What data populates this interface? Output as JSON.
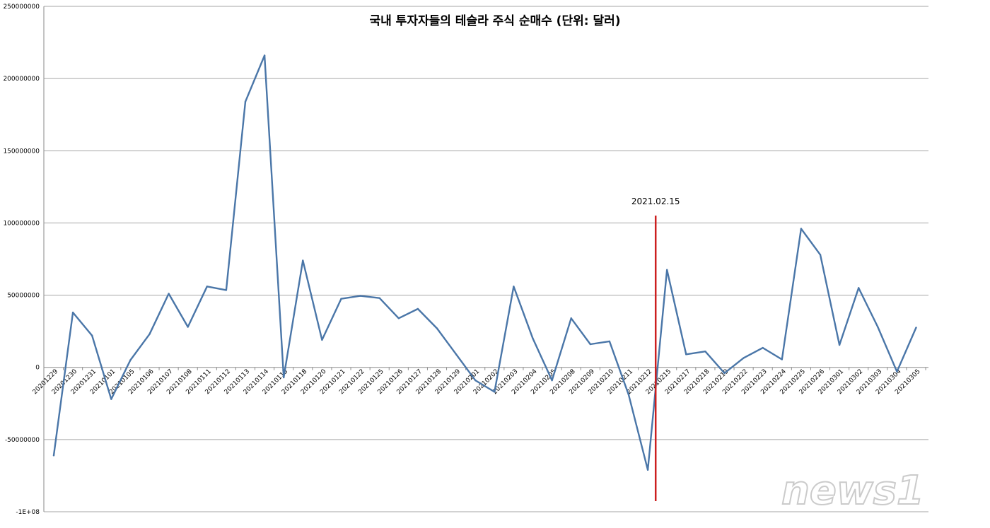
{
  "chart_data": {
    "type": "line",
    "title": "국내 투자자들의 테슬라 주식 순매수 (단위: 달러)",
    "xlabel": "",
    "ylabel": "",
    "ylim": [
      -100000000,
      250000000
    ],
    "yticks": [
      250000000,
      200000000,
      150000000,
      100000000,
      50000000,
      0,
      -50000000,
      -100000000
    ],
    "ytick_labels": [
      "250000000",
      "200000000",
      "150000000",
      "100000000",
      "50000000",
      "0",
      "-50000000",
      "-1E+08"
    ],
    "grid": true,
    "legend": "none",
    "categories": [
      "20201229",
      "20201230",
      "20201231",
      "20210101",
      "20210105",
      "20210106",
      "20210107",
      "20210108",
      "20210111",
      "20210112",
      "20210113",
      "20210114",
      "20210115",
      "20210118",
      "20210120",
      "20210121",
      "20210122",
      "20210125",
      "20210126",
      "20210127",
      "20210128",
      "20210129",
      "20210201",
      "20210202",
      "20210203",
      "20210204",
      "20210205",
      "20210208",
      "20210209",
      "20210210",
      "20210211",
      "20210212",
      "20210215",
      "20210217",
      "20210218",
      "20210219",
      "20210222",
      "20210223",
      "20210224",
      "20210225",
      "20210226",
      "20210301",
      "20210302",
      "20210303",
      "20210304",
      "20210305"
    ],
    "series": [
      {
        "color": "#4a76a8",
        "values": [
          -61000000,
          38000000,
          22000000,
          -22000000,
          5000000,
          23000000,
          51000000,
          28000000,
          56000000,
          53500000,
          184000000,
          216000000,
          -7000000,
          74000000,
          19000000,
          47500000,
          49500000,
          48000000,
          34000000,
          40500000,
          27000000,
          9000000,
          -9000000,
          -17000000,
          56000000,
          20000000,
          -9000000,
          34000000,
          16000000,
          18000000,
          -19000000,
          -71000000,
          67500000,
          9000000,
          11000000,
          -4000000,
          6500000,
          13500000,
          5500000,
          96000000,
          78000000,
          15500000,
          55000000,
          28000000,
          -3000000,
          27500000
        ]
      }
    ],
    "annotations": [
      {
        "type": "vertical-line",
        "x": "20210215",
        "label": "2021.02.15",
        "color": "#cc1f1f"
      }
    ],
    "watermark": "news1"
  }
}
